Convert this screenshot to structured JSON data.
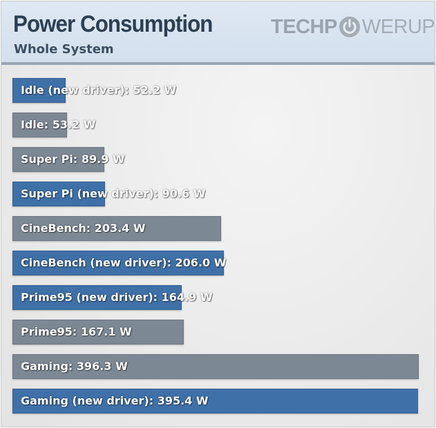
{
  "header": {
    "title": "Power Consumption",
    "subtitle": "Whole System",
    "logo": {
      "part1": "TECHP",
      "part2": "WERUP",
      "icon": "power-icon"
    }
  },
  "colors": {
    "new_driver": "#3f70a8",
    "old_driver": "#7d8895"
  },
  "chart_data": {
    "type": "bar",
    "orientation": "horizontal",
    "title": "Power Consumption",
    "subtitle": "Whole System",
    "unit": "W",
    "xlim": [
      0,
      400
    ],
    "grid": false,
    "categories": [
      "Idle (new driver)",
      "Idle",
      "Super Pi",
      "Super Pi (new driver)",
      "CineBench",
      "CineBench (new driver)",
      "Prime95 (new driver)",
      "Prime95",
      "Gaming",
      "Gaming (new driver)"
    ],
    "values": [
      52.2,
      53.2,
      89.9,
      90.6,
      203.4,
      206.0,
      164.9,
      167.1,
      396.3,
      395.4
    ],
    "labels": [
      "Idle (new driver): 52.2 W",
      "Idle: 53.2 W",
      "Super Pi: 89.9 W",
      "Super Pi (new driver): 90.6 W",
      "CineBench: 203.4 W",
      "CineBench (new driver): 206.0 W",
      "Prime95 (new driver): 164.9 W",
      "Prime95: 167.1 W",
      "Gaming: 396.3 W",
      "Gaming (new driver): 395.4 W"
    ],
    "series_type": [
      "new",
      "old",
      "old",
      "new",
      "old",
      "new",
      "new",
      "old",
      "old",
      "new"
    ]
  }
}
